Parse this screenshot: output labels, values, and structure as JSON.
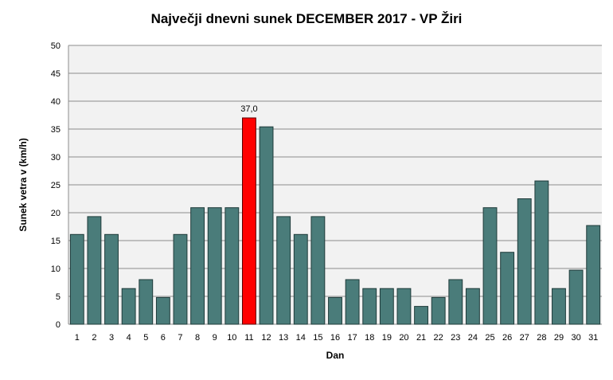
{
  "chart_data": {
    "type": "bar",
    "title": "Največji dnevni sunek DECEMBER  2017 - VP Žiri",
    "xlabel": "Dan",
    "ylabel": "Sunek vetra v (km/h)",
    "ylim": [
      0,
      50
    ],
    "yticks": [
      0,
      5,
      10,
      15,
      20,
      25,
      30,
      35,
      40,
      45,
      50
    ],
    "grid": true,
    "legend": "none",
    "categories": [
      "1",
      "2",
      "3",
      "4",
      "5",
      "6",
      "7",
      "8",
      "9",
      "10",
      "11",
      "12",
      "13",
      "14",
      "15",
      "16",
      "17",
      "18",
      "19",
      "20",
      "21",
      "22",
      "23",
      "24",
      "25",
      "26",
      "27",
      "28",
      "29",
      "30",
      "31"
    ],
    "values": [
      16.1,
      19.3,
      16.1,
      6.4,
      8.0,
      4.8,
      16.1,
      20.9,
      20.9,
      20.9,
      37.0,
      35.4,
      19.3,
      16.1,
      19.3,
      4.8,
      8.0,
      6.4,
      6.4,
      6.4,
      3.2,
      4.8,
      8.0,
      6.4,
      20.9,
      12.9,
      22.5,
      25.7,
      6.4,
      9.7,
      17.7
    ],
    "highlight_index": 10,
    "highlight_label": "37,0",
    "colors": {
      "bar": "#4a7c7a",
      "bar_stroke": "#1f3b3a",
      "highlight": "#ff0000",
      "highlight_stroke": "#5a0000",
      "plot_bg": "#f2f2f2",
      "grid": "#8c8c8c"
    }
  }
}
